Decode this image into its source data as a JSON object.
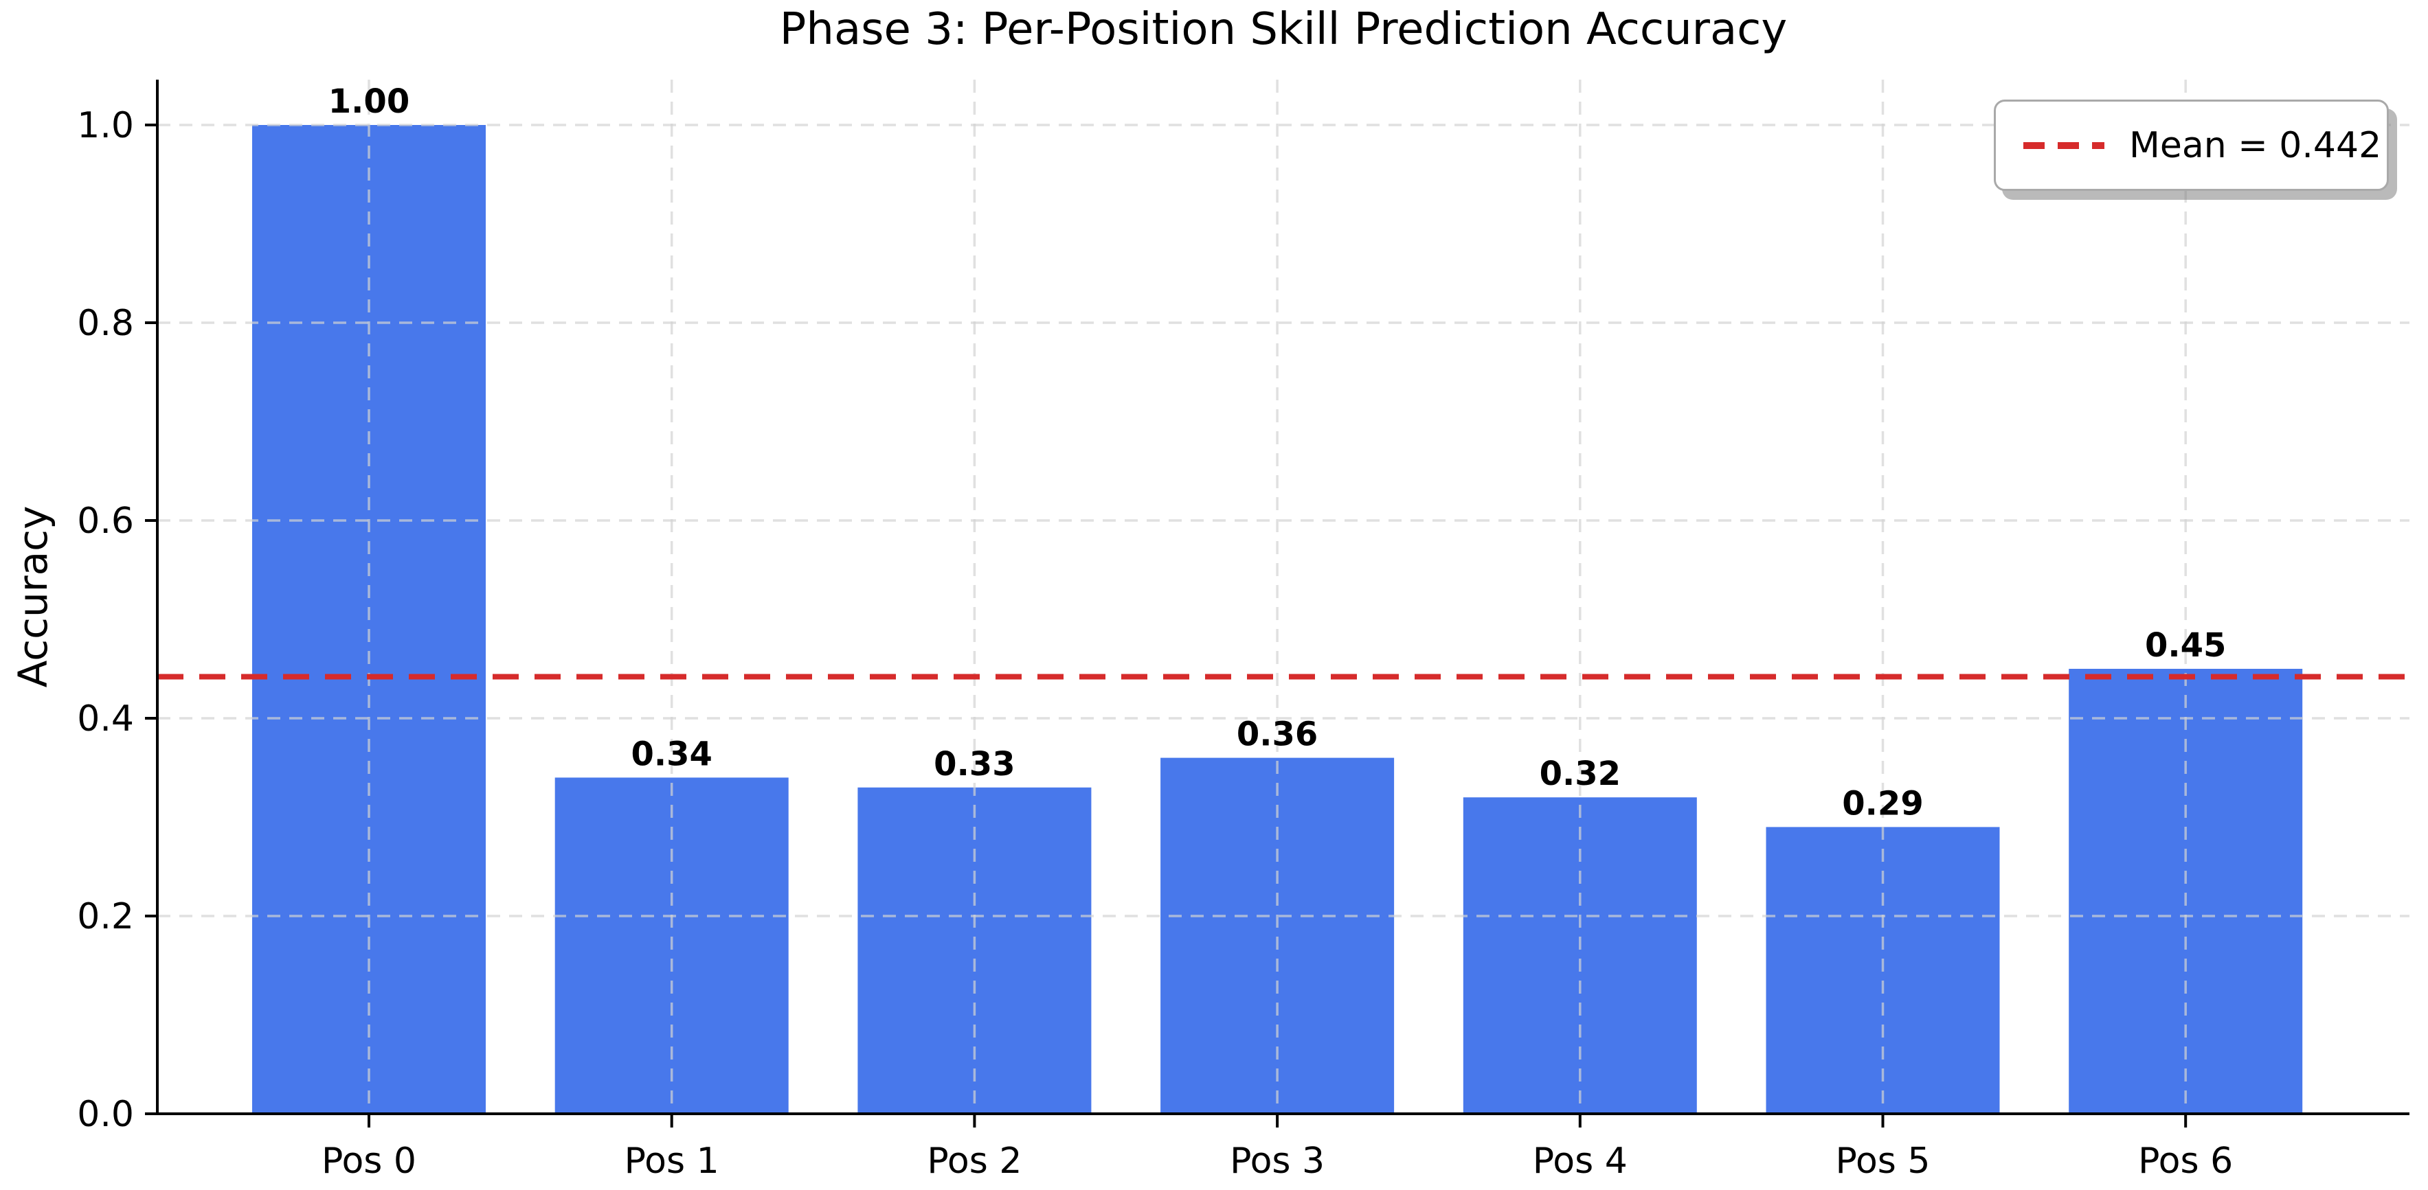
{
  "figure": {
    "background_color": "#FFFFFF"
  },
  "chart_data": {
    "type": "bar",
    "title": "Phase 3: Per-Position Skill Prediction Accuracy",
    "xlabel": "",
    "ylabel": "Accuracy",
    "categories": [
      "Pos 0",
      "Pos 1",
      "Pos 2",
      "Pos 3",
      "Pos 4",
      "Pos 5",
      "Pos 6"
    ],
    "values": [
      1.0,
      0.34,
      0.33,
      0.36,
      0.32,
      0.29,
      0.45
    ],
    "bar_labels": [
      "1.00",
      "0.34",
      "0.33",
      "0.36",
      "0.32",
      "0.29",
      "0.45"
    ],
    "mean_value": 0.442,
    "legend_label": "Mean = 0.442",
    "legend_position": "upper right",
    "ylim": [
      0.0,
      1.046
    ],
    "yticks": [
      0.0,
      0.2,
      0.4,
      0.6,
      0.8,
      1.0
    ],
    "ytick_labels": [
      "0.0",
      "0.2",
      "0.4",
      "0.6",
      "0.8",
      "1.0"
    ],
    "grid": true,
    "grid_style": "dashed",
    "colors": {
      "bar": "#4878EB",
      "mean_line": "#D62B2B",
      "grid": "#D3D3D3",
      "axis": "#000000",
      "text": "#000000",
      "legend_border": "#A9A9A9",
      "background": "#FFFFFF"
    }
  }
}
